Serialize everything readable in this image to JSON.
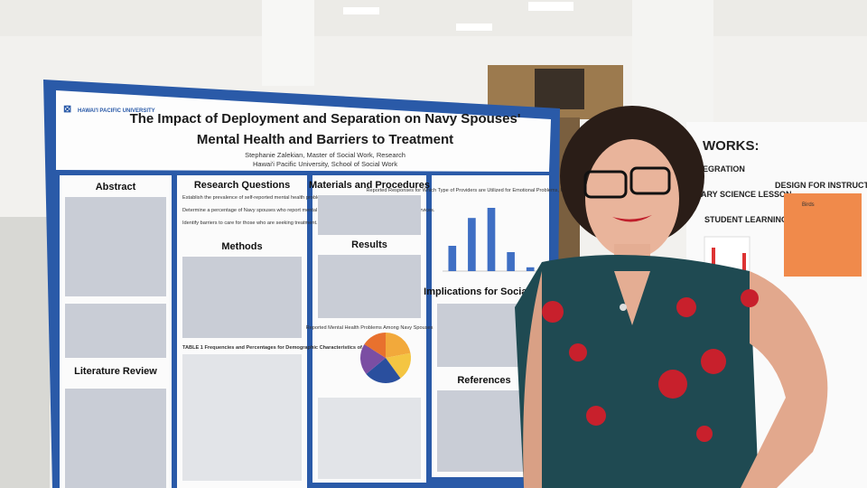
{
  "poster": {
    "logo": "HAWAI'I PACIFIC UNIVERSITY",
    "title_line1": "The Impact of Deployment and Separation on Navy Spouses'",
    "title_line2": "Mental Health and Barriers to Treatment",
    "author": "Stephanie Zalekian, Master of Social Work, Research",
    "affiliation": "Hawai'i Pacific University, School of Social Work",
    "sections": {
      "abstract": "Abstract",
      "literature_review": "Literature Review",
      "research_questions": "Research Questions",
      "methods": "Methods",
      "materials": "Materials and Procedures",
      "results": "Results",
      "implications": "Implications for Social Work",
      "references": "References"
    },
    "research_questions": [
      "Establish the prevalence of self-reported mental health problems in Navy spouses.",
      "Determine a percentage of Navy spouses who report mental health concerns and who are not receiving services.",
      "Identify barriers to care for those who are seeking treatment."
    ],
    "bar_chart": {
      "type": "bar",
      "title": "Reported Responses for Which Type of Providers are Utilized for Emotional Problems, Mental Health, or Stress",
      "values": [
        20,
        42,
        50,
        15,
        3
      ]
    },
    "pie_chart": {
      "type": "pie",
      "title": "Reported Mental Health Problems Among Navy Spouses",
      "values": [
        22,
        18,
        24,
        20,
        16
      ]
    },
    "table_title": "TABLE 1   Frequencies and Percentages for Demographic Characteristics of Participants"
  },
  "background_posters": {
    "heading": "WORKS:",
    "lines": [
      "EGRATION",
      "ARY SCIENCE LESSON",
      "STUDENT LEARNING"
    ],
    "right_heading": "DESIGN FOR INSTRUCT",
    "card": "Birds"
  }
}
